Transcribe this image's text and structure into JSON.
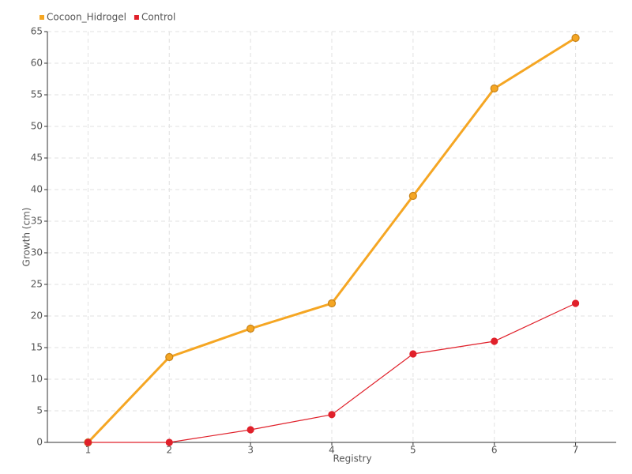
{
  "chart_data": {
    "type": "line",
    "xlabel": "Registry",
    "ylabel": "Growth (cm)",
    "categories": [
      "1",
      "2",
      "3",
      "4",
      "5",
      "6",
      "7"
    ],
    "series": [
      {
        "name": "Cocoon_Hidrogel",
        "color": "#f5a623",
        "values": [
          0,
          13.5,
          18,
          22,
          39,
          56,
          64
        ]
      },
      {
        "name": "Control",
        "color": "#e0202a",
        "values": [
          0,
          0,
          2,
          4.4,
          14,
          16,
          22
        ]
      }
    ],
    "ylim": [
      0,
      65
    ],
    "yticks": [
      0,
      5,
      10,
      15,
      20,
      25,
      30,
      35,
      40,
      45,
      50,
      55,
      60,
      65
    ],
    "grid": true,
    "legend": "top-left"
  }
}
